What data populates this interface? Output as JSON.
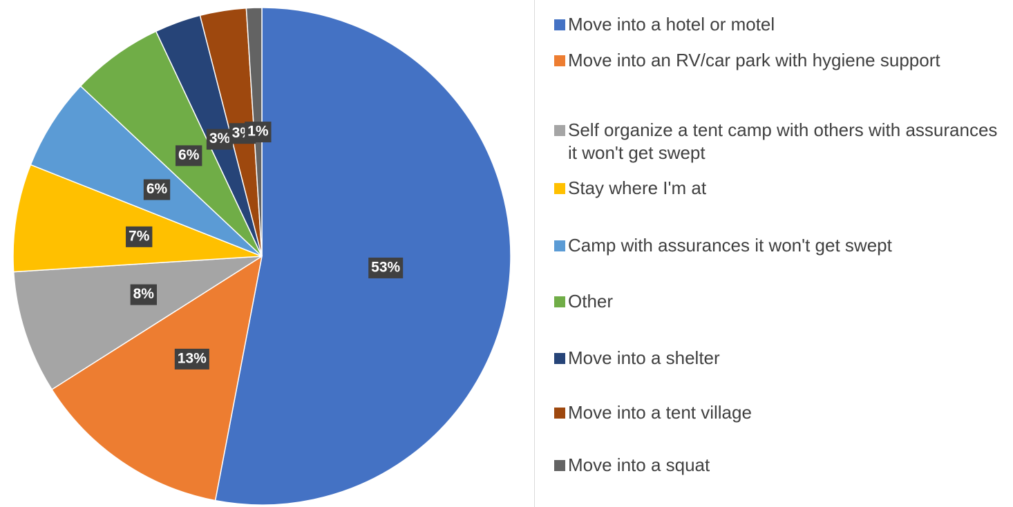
{
  "chart_data": {
    "type": "pie",
    "categories": [
      "Move into a hotel or motel",
      "Move into an RV/car park with hygiene support",
      "Self organize a tent camp with others with assurances it won't get swept",
      "Stay where I'm at",
      "Camp with assurances it won't get swept",
      "Other",
      "Move into a shelter",
      "Move into a tent village",
      "Move into a squat"
    ],
    "values": [
      53,
      13,
      8,
      7,
      6,
      6,
      3,
      3,
      1
    ],
    "value_labels": [
      "53%",
      "13%",
      "8%",
      "7%",
      "6%",
      "6%",
      "3%",
      "3%",
      "1%"
    ],
    "colors": [
      "#4472c4",
      "#ed7d31",
      "#a5a5a5",
      "#ffc000",
      "#5b9bd5",
      "#70ad47",
      "#264478",
      "#9e480e",
      "#636363"
    ],
    "legend": "right"
  }
}
